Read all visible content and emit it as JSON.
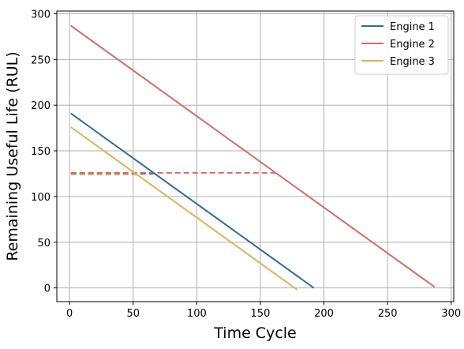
{
  "chart_data": {
    "type": "line",
    "title": "",
    "xlabel": "Time Cycle",
    "ylabel": "Remaining Useful Life (RUL)",
    "xlim": [
      -10,
      302
    ],
    "ylim": [
      -15,
      303
    ],
    "xticks": [
      0,
      50,
      100,
      150,
      200,
      250,
      300
    ],
    "yticks": [
      0,
      50,
      100,
      150,
      200,
      250,
      300
    ],
    "grid": true,
    "legend_position": "top-right",
    "series": [
      {
        "name": "Engine 1",
        "color": "#336b94",
        "style": "solid",
        "x": [
          1,
          192
        ],
        "y": [
          191,
          0
        ]
      },
      {
        "name": "Engine 2",
        "color": "#cc6e6a",
        "style": "solid",
        "x": [
          1,
          287
        ],
        "y": [
          287,
          1
        ]
      },
      {
        "name": "Engine 3",
        "color": "#d6b466",
        "style": "solid",
        "x": [
          1,
          179
        ],
        "y": [
          176,
          -2
        ]
      }
    ],
    "reference_lines": [
      {
        "series": "Engine 1",
        "color": "#336b94",
        "style": "dashed",
        "x": [
          1,
          66
        ],
        "y": [
          125,
          125
        ]
      },
      {
        "series": "Engine 2",
        "color": "#cc6e6a",
        "style": "dashed",
        "x": [
          1,
          162
        ],
        "y": [
          126,
          126
        ]
      },
      {
        "series": "Engine 3",
        "color": "#d6b466",
        "style": "dashed",
        "x": [
          1,
          54
        ],
        "y": [
          124,
          124
        ]
      }
    ]
  }
}
